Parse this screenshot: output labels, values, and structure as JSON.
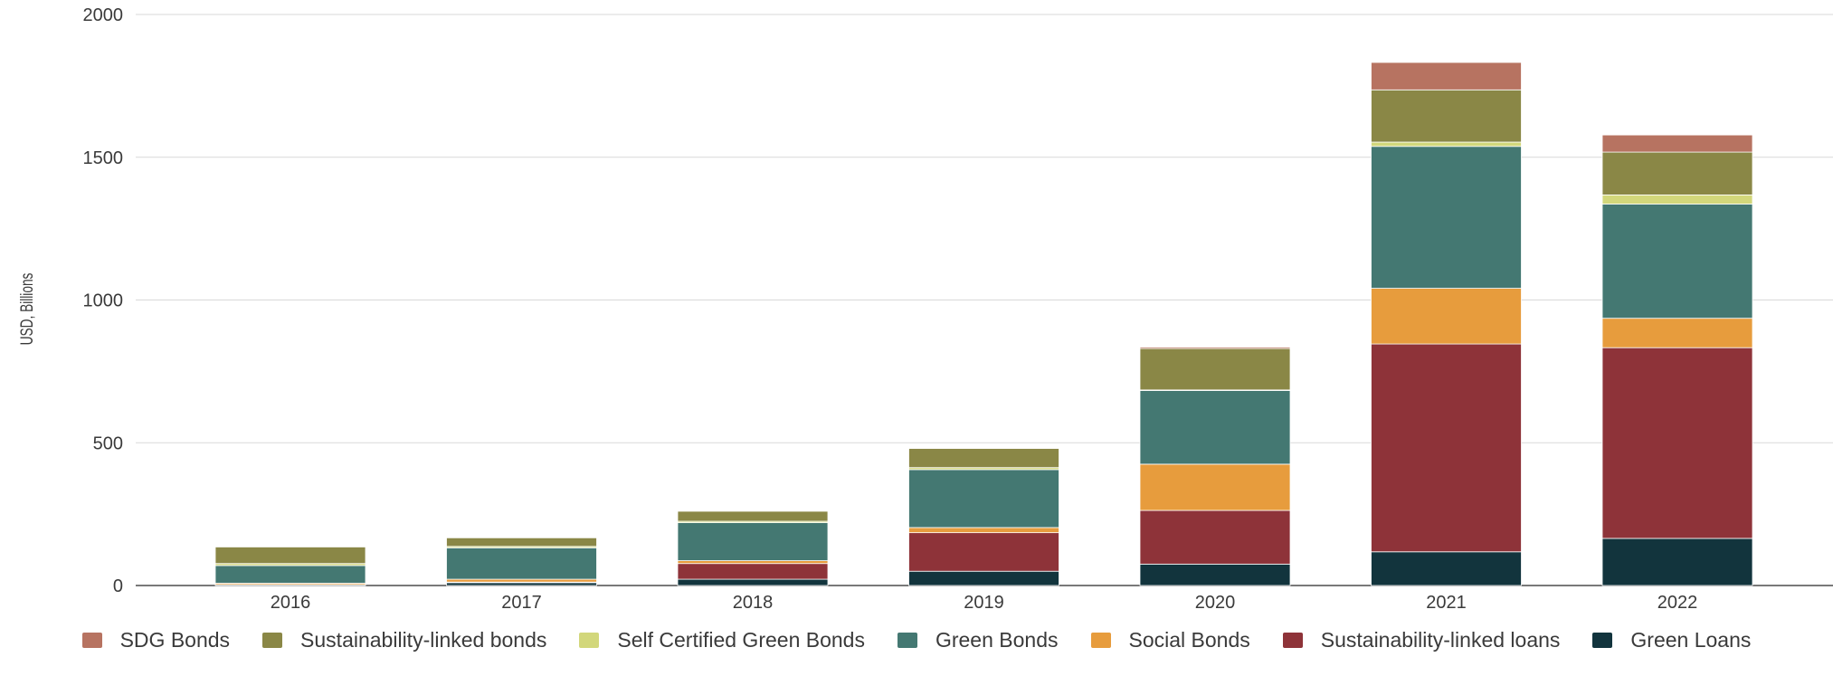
{
  "chart_data": {
    "type": "bar",
    "stacked": true,
    "categories": [
      "2016",
      "2017",
      "2018",
      "2019",
      "2020",
      "2021",
      "2022"
    ],
    "ylabel": "USD, Billions",
    "xlabel": "",
    "ylim": [
      0,
      2000
    ],
    "yticks": [
      "0",
      "500",
      "1000",
      "1500",
      "2000"
    ],
    "grid": true,
    "legend_position": "bottom",
    "series": [
      {
        "name": "Green Loans",
        "color": "#12343d",
        "values": [
          3,
          10,
          22,
          50,
          75,
          118,
          165
        ]
      },
      {
        "name": "Sustainability-linked loans",
        "color": "#8e3339",
        "values": [
          0,
          2,
          55,
          135,
          188,
          728,
          668
        ]
      },
      {
        "name": "Social Bonds",
        "color": "#e79c3d",
        "values": [
          5,
          10,
          10,
          18,
          162,
          195,
          103
        ]
      },
      {
        "name": "Green Bonds",
        "color": "#447872",
        "values": [
          62,
          110,
          133,
          203,
          258,
          497,
          400
        ]
      },
      {
        "name": "Self Certified Green Bonds",
        "color": "#d2d77b",
        "values": [
          7,
          5,
          5,
          7,
          2,
          15,
          32
        ]
      },
      {
        "name": "Sustainability-linked bonds",
        "color": "#8a8746",
        "values": [
          58,
          30,
          35,
          67,
          145,
          183,
          150
        ]
      },
      {
        "name": "SDG Bonds",
        "color": "#b77361",
        "values": [
          0,
          0,
          0,
          0,
          5,
          96,
          60
        ]
      }
    ],
    "legend_order": [
      "SDG Bonds",
      "Sustainability-linked bonds",
      "Self Certified Green Bonds",
      "Green Bonds",
      "Social Bonds",
      "Sustainability-linked loans",
      "Green Loans"
    ]
  }
}
